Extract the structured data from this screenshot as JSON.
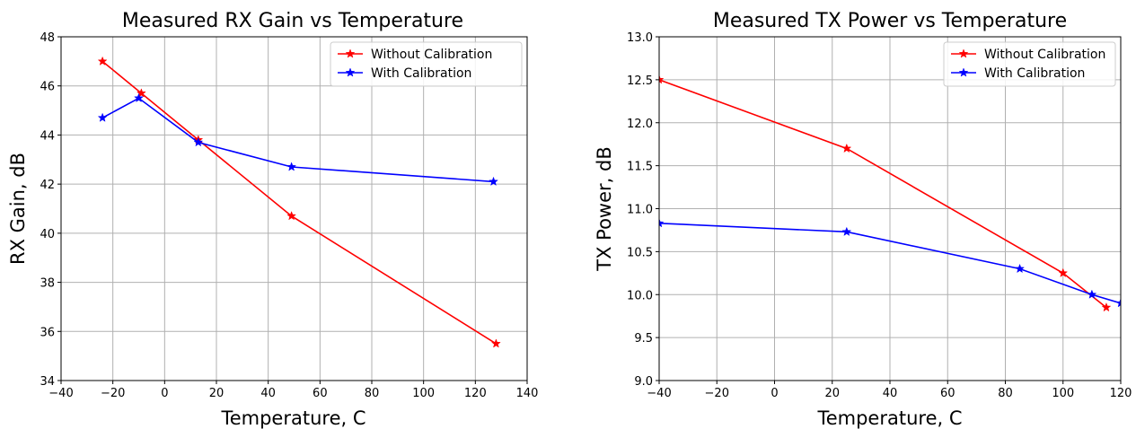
{
  "chart_data": [
    {
      "type": "line",
      "title": "Measured RX Gain vs Temperature",
      "xlabel": "Temperature, C",
      "ylabel": "RX Gain, dB",
      "xlim": [
        -40,
        140
      ],
      "ylim": [
        34,
        48
      ],
      "xticks": [
        -40,
        -20,
        0,
        20,
        40,
        60,
        80,
        100,
        120,
        140
      ],
      "yticks": [
        34,
        36,
        38,
        40,
        42,
        44,
        46,
        48
      ],
      "xtick_labels": [
        "−40",
        "−20",
        "0",
        "20",
        "40",
        "60",
        "80",
        "100",
        "120",
        "140"
      ],
      "ytick_labels": [
        "34",
        "36",
        "38",
        "40",
        "42",
        "44",
        "46",
        "48"
      ],
      "grid": true,
      "legend_position": "top-right",
      "series": [
        {
          "name": "Without Calibration",
          "color": "#ff0000",
          "marker": "star",
          "x": [
            -24,
            -9,
            13,
            49,
            128
          ],
          "y": [
            47.0,
            45.7,
            43.8,
            40.7,
            35.5
          ]
        },
        {
          "name": "With Calibration",
          "color": "#0000ff",
          "marker": "star",
          "x": [
            -24,
            -10,
            13,
            49,
            127
          ],
          "y": [
            44.7,
            45.5,
            43.7,
            42.7,
            42.1
          ]
        }
      ]
    },
    {
      "type": "line",
      "title": "Measured TX Power vs Temperature",
      "xlabel": "Temperature, C",
      "ylabel": "TX Power, dB",
      "xlim": [
        -40,
        120
      ],
      "ylim": [
        9.0,
        13.0
      ],
      "xticks": [
        -40,
        -20,
        0,
        20,
        40,
        60,
        80,
        100,
        120
      ],
      "yticks": [
        9.0,
        9.5,
        10.0,
        10.5,
        11.0,
        11.5,
        12.0,
        12.5,
        13.0
      ],
      "xtick_labels": [
        "−40",
        "−20",
        "0",
        "20",
        "40",
        "60",
        "80",
        "100",
        "120"
      ],
      "ytick_labels": [
        "9.0",
        "9.5",
        "10.0",
        "10.5",
        "11.0",
        "11.5",
        "12.0",
        "12.5",
        "13.0"
      ],
      "grid": true,
      "legend_position": "top-right",
      "series": [
        {
          "name": "Without Calibration",
          "color": "#ff0000",
          "marker": "star",
          "x": [
            -40,
            25,
            100,
            115
          ],
          "y": [
            12.5,
            11.7,
            10.25,
            9.85
          ]
        },
        {
          "name": "With Calibration",
          "color": "#0000ff",
          "marker": "star",
          "x": [
            -40,
            25,
            85,
            110,
            120
          ],
          "y": [
            10.83,
            10.73,
            10.3,
            10.0,
            9.9
          ]
        }
      ]
    }
  ]
}
